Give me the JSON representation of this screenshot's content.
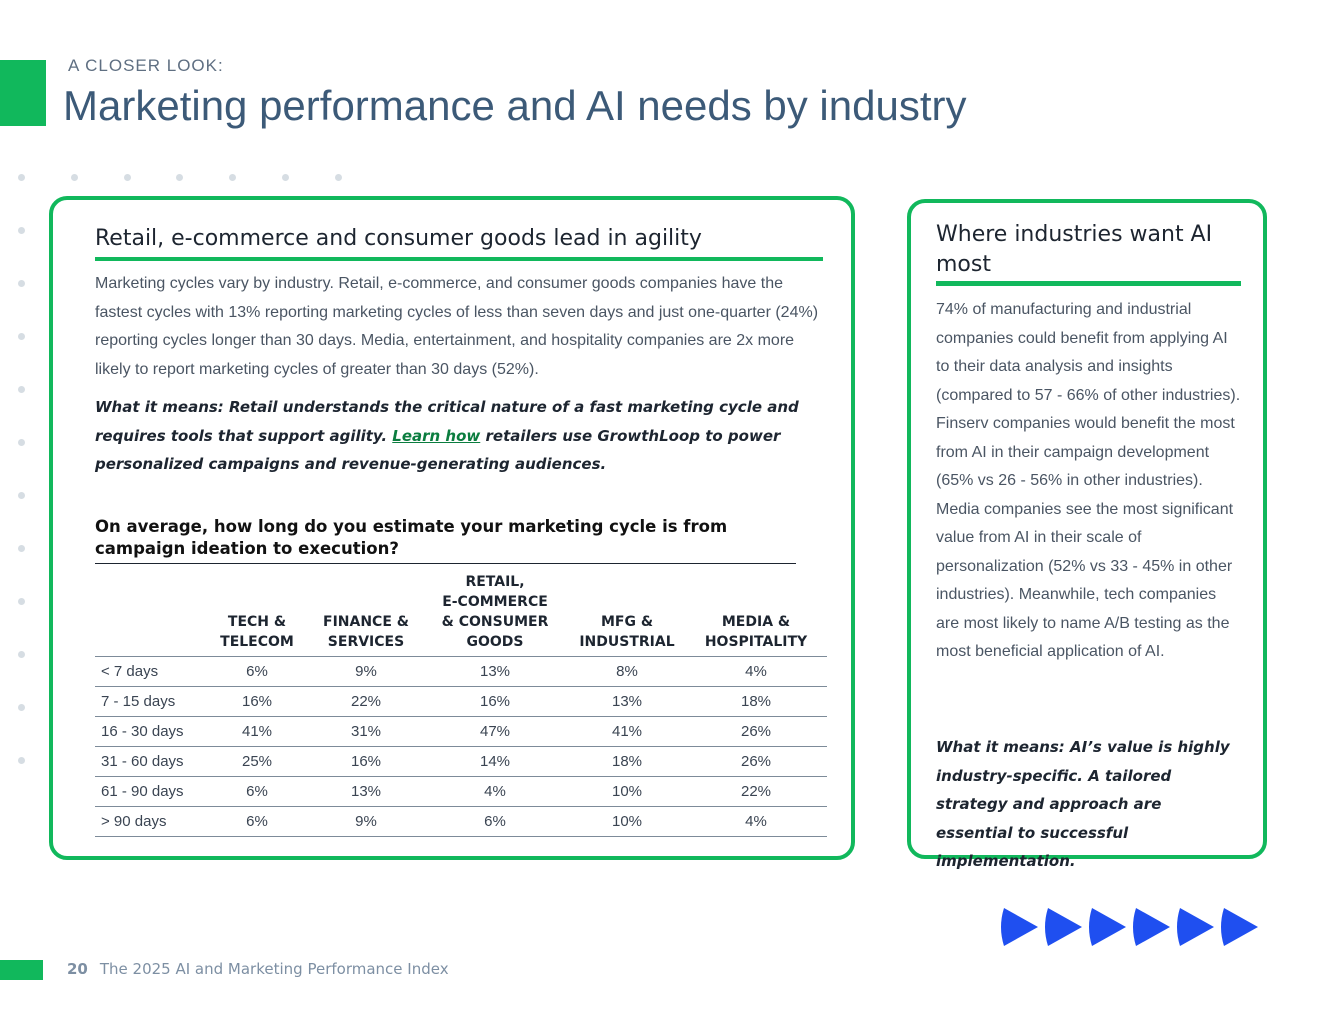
{
  "header": {
    "eyebrow": "A CLOSER LOOK:",
    "title": "Marketing performance and AI needs by industry"
  },
  "left_card": {
    "heading": "Retail, e-commerce and consumer goods lead in agility",
    "body": "Marketing cycles vary by industry. Retail, e-commerce, and consumer goods companies have the fastest cycles with 13% reporting marketing cycles of less than seven days and just one-quarter (24%) reporting cycles longer than 30 days. Media, entertainment, and hospitality companies are 2x more likely to report marketing cycles of greater than 30 days (52%).",
    "what_it_means_before": "What it means: Retail understands the critical nature of a fast marketing cycle and requires tools that support agility.",
    "link_text": "Learn how",
    "what_it_means_after": "retailers use GrowthLoop to power personalized campaigns and revenue-generating audiences.",
    "question": "On average, how long do you estimate your marketing cycle is from campaign ideation to execution?",
    "table": {
      "columns": [
        "TECH & TELECOM",
        "FINANCE & SERVICES",
        "RETAIL, E-COMMERCE & CONSUMER GOODS",
        "MFG & INDUSTRIAL",
        "MEDIA & HOSPITALITY"
      ],
      "column_lines": [
        [
          "TECH &",
          "TELECOM"
        ],
        [
          "FINANCE &",
          "SERVICES"
        ],
        [
          "RETAIL,",
          "E-COMMERCE",
          "& CONSUMER",
          "GOODS"
        ],
        [
          "MFG &",
          "INDUSTRIAL"
        ],
        [
          "MEDIA &",
          "HOSPITALITY"
        ]
      ],
      "rows": [
        {
          "label": "< 7 days",
          "values": [
            "6%",
            "9%",
            "13%",
            "8%",
            "4%"
          ]
        },
        {
          "label": "7 - 15 days",
          "values": [
            "16%",
            "22%",
            "16%",
            "13%",
            "18%"
          ]
        },
        {
          "label": "16 - 30 days",
          "values": [
            "41%",
            "31%",
            "47%",
            "41%",
            "26%"
          ]
        },
        {
          "label": "31 - 60 days",
          "values": [
            "25%",
            "16%",
            "14%",
            "18%",
            "26%"
          ]
        },
        {
          "label": "61 - 90 days",
          "values": [
            "6%",
            "13%",
            "4%",
            "10%",
            "22%"
          ]
        },
        {
          "label": "> 90 days",
          "values": [
            "6%",
            "9%",
            "6%",
            "10%",
            "4%"
          ]
        }
      ]
    }
  },
  "right_card": {
    "heading": "Where industries want AI most",
    "body": "74% of manufacturing and industrial companies could benefit from applying AI to their data analysis and insights (compared to 57 - 66% of other industries). Finserv companies would benefit the most from AI in their campaign development (65% vs 26 - 56% in other industries). Media companies see the most significant value from AI in their scale of personalization (52% vs 33 - 45% in other industries). Meanwhile, tech companies are most likely to name A/B testing as the most beneficial application of AI.",
    "what_it_means": "What it means: AI’s value is highly industry-specific. A tailored strategy and approach are essential to successful implementation."
  },
  "footer": {
    "page_number": "20",
    "publication": "The 2025 AI and Marketing Performance Index"
  },
  "colors": {
    "accent_green": "#11b85c",
    "title_blue": "#3c5a78",
    "arrow_blue": "#1f4ff0"
  }
}
